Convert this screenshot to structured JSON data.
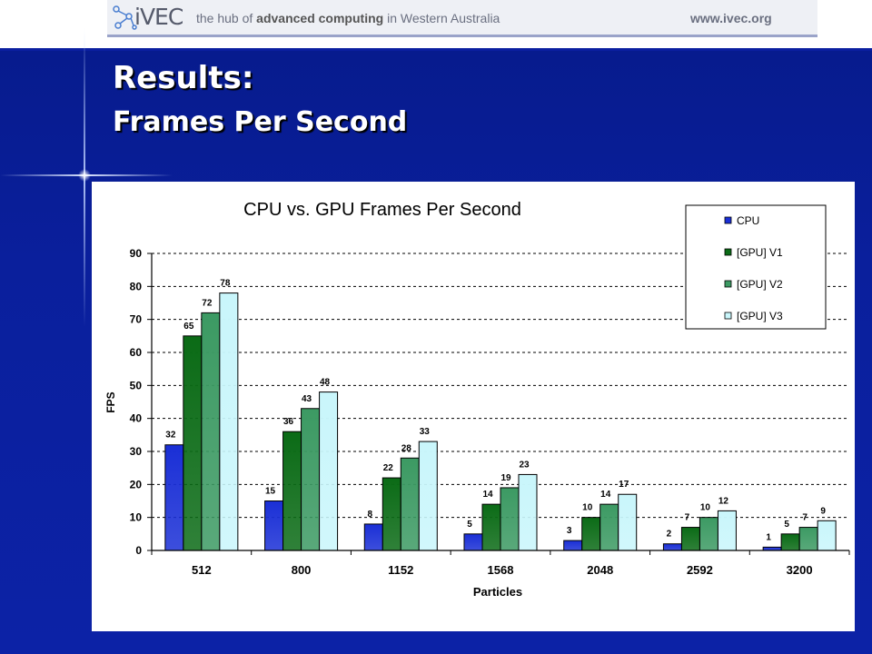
{
  "header": {
    "logo_text": "iVEC",
    "tagline_pre": "the hub of ",
    "tagline_bold": "advanced computing",
    "tagline_post": " in Western Australia",
    "url": "www.ivec.org"
  },
  "slide": {
    "title": "Results:",
    "subtitle": "Frames Per Second"
  },
  "chart_data": {
    "type": "bar",
    "title": "CPU vs. GPU Frames Per Second",
    "xlabel": "Particles",
    "ylabel": "FPS",
    "categories": [
      "512",
      "800",
      "1152",
      "1568",
      "2048",
      "2592",
      "3200"
    ],
    "ylim": [
      0,
      90
    ],
    "yticks": [
      0,
      10,
      20,
      30,
      40,
      50,
      60,
      70,
      80,
      90
    ],
    "grid": true,
    "legend_position": "top-right",
    "series": [
      {
        "name": "CPU",
        "color": "#1a2fd6",
        "values": [
          32,
          15,
          8,
          5,
          3,
          2,
          1
        ]
      },
      {
        "name": "[GPU] V1",
        "color": "#0b6b16",
        "values": [
          65,
          36,
          22,
          14,
          10,
          7,
          5
        ]
      },
      {
        "name": "[GPU] V2",
        "color": "#3c9a63",
        "values": [
          72,
          43,
          28,
          19,
          14,
          10,
          7
        ]
      },
      {
        "name": "[GPU] V3",
        "color": "#c9f6fb",
        "values": [
          78,
          48,
          33,
          23,
          17,
          12,
          9
        ]
      }
    ]
  }
}
